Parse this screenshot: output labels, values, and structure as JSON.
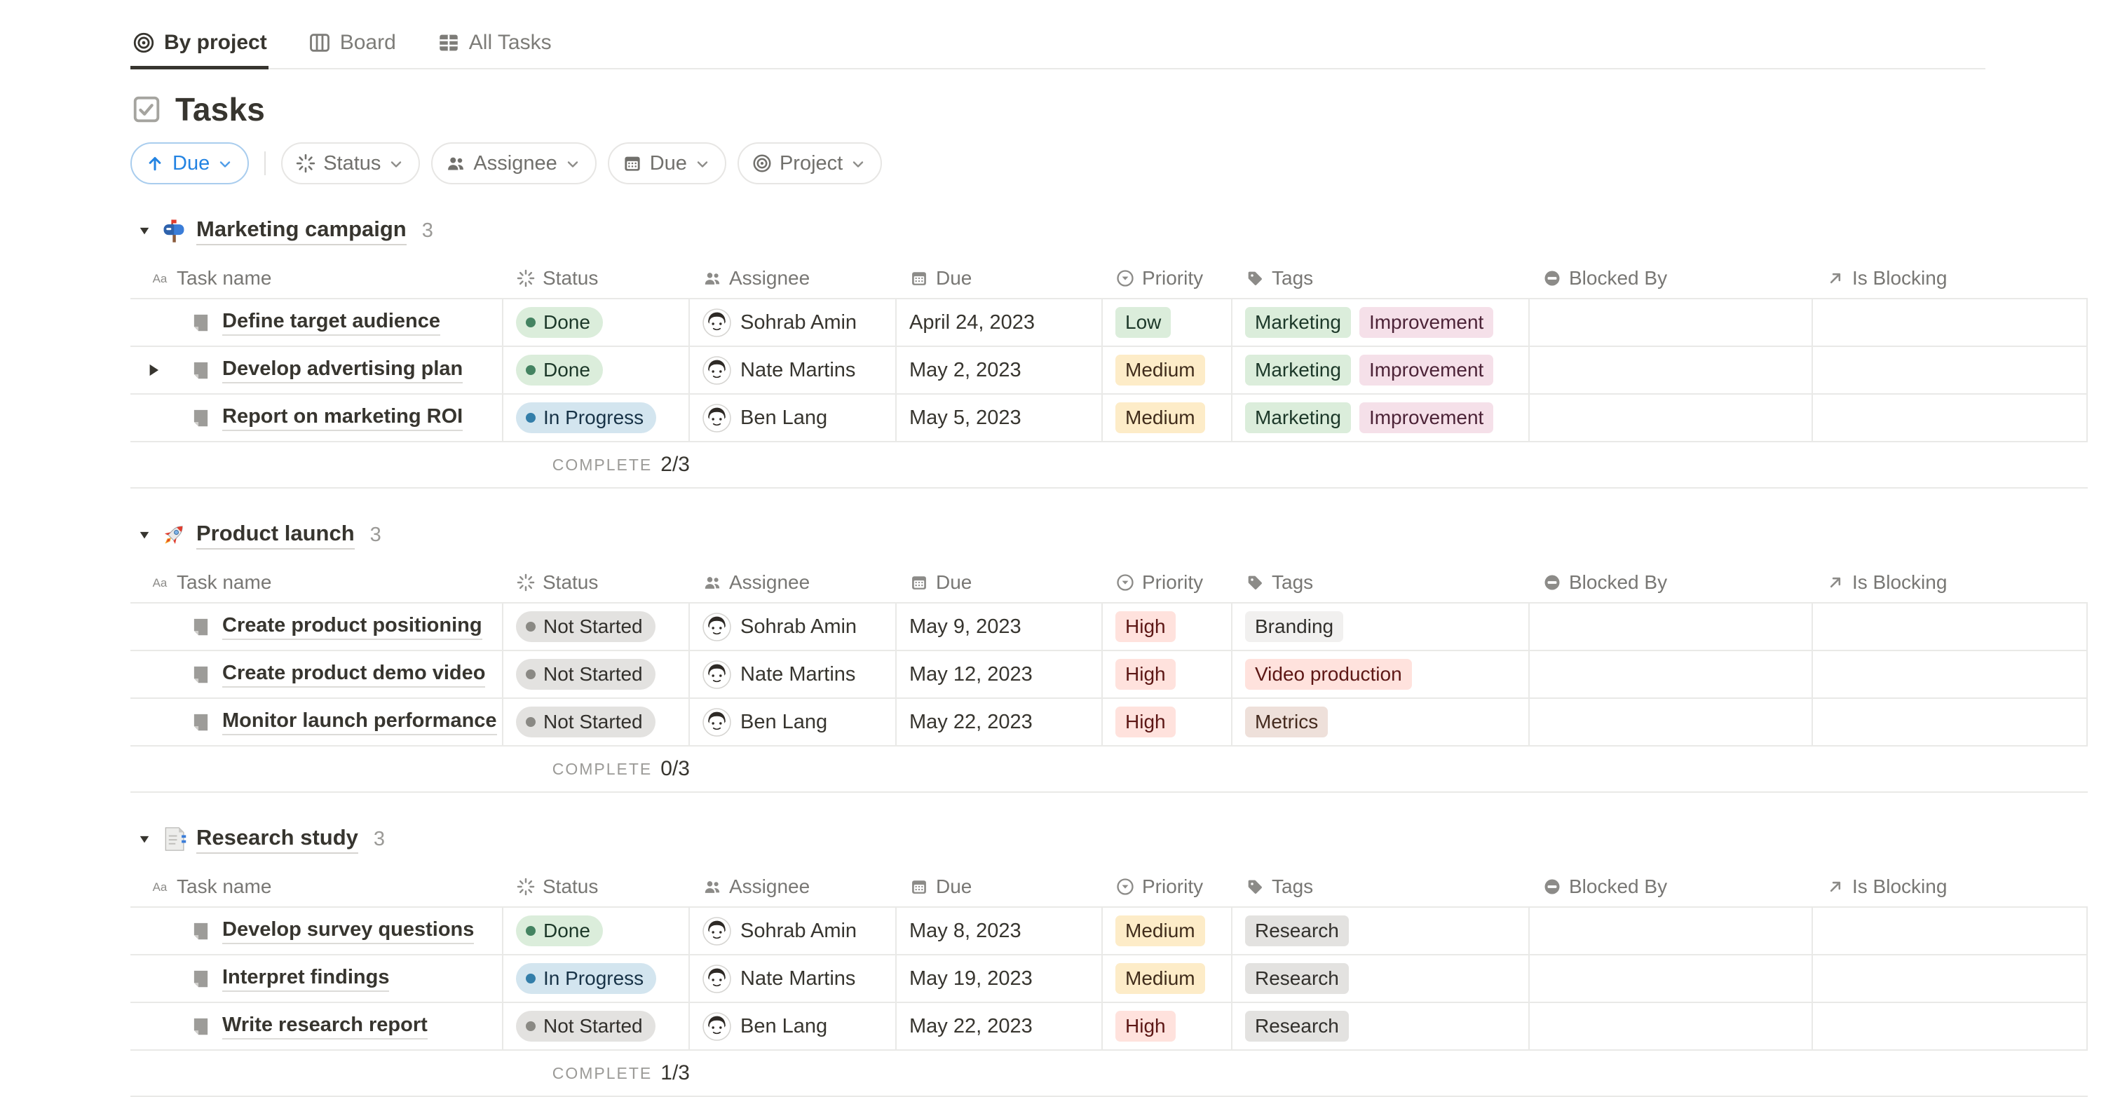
{
  "tabs": [
    {
      "label": "By project",
      "icon": "target",
      "active": true
    },
    {
      "label": "Board",
      "icon": "board",
      "active": false
    },
    {
      "label": "All Tasks",
      "icon": "table",
      "active": false
    }
  ],
  "page": {
    "title": "Tasks",
    "icon": "checkbox"
  },
  "toolbar": {
    "sort": {
      "label": "Due",
      "icon": "arrow-up"
    },
    "filters": [
      {
        "label": "Status",
        "icon": "status-spinner"
      },
      {
        "label": "Assignee",
        "icon": "people"
      },
      {
        "label": "Due",
        "icon": "calendar"
      },
      {
        "label": "Project",
        "icon": "target"
      }
    ]
  },
  "columns": [
    {
      "key": "task",
      "label": "Task name",
      "icon": "text"
    },
    {
      "key": "status",
      "label": "Status",
      "icon": "status-spinner"
    },
    {
      "key": "assignee",
      "label": "Assignee",
      "icon": "people"
    },
    {
      "key": "due",
      "label": "Due",
      "icon": "calendar"
    },
    {
      "key": "priority",
      "label": "Priority",
      "icon": "priority-select"
    },
    {
      "key": "tags",
      "label": "Tags",
      "icon": "tag"
    },
    {
      "key": "blocked_by",
      "label": "Blocked By",
      "icon": "no-entry"
    },
    {
      "key": "is_blocking",
      "label": "Is Blocking",
      "icon": "arrow-up-right"
    }
  ],
  "groups": [
    {
      "name": "Marketing campaign",
      "icon": "mailbox",
      "count": "3",
      "complete_label": "COMPLETE",
      "complete_value": "2/3",
      "rows": [
        {
          "task": "Define target audience",
          "expandable": false,
          "status": {
            "label": "Done",
            "color": "green"
          },
          "assignee": "Sohrab Amin",
          "due": "April 24, 2023",
          "priority": {
            "label": "Low",
            "color": "green"
          },
          "tags": [
            {
              "label": "Marketing",
              "color": "green"
            },
            {
              "label": "Improvement",
              "color": "pink"
            }
          ],
          "blocked_by": "",
          "is_blocking": ""
        },
        {
          "task": "Develop advertising plan",
          "expandable": true,
          "status": {
            "label": "Done",
            "color": "green"
          },
          "assignee": "Nate Martins",
          "due": "May 2, 2023",
          "priority": {
            "label": "Medium",
            "color": "yellow"
          },
          "tags": [
            {
              "label": "Marketing",
              "color": "green"
            },
            {
              "label": "Improvement",
              "color": "pink"
            }
          ],
          "blocked_by": "",
          "is_blocking": ""
        },
        {
          "task": "Report on marketing ROI",
          "expandable": false,
          "status": {
            "label": "In Progress",
            "color": "blue"
          },
          "assignee": "Ben Lang",
          "due": "May 5, 2023",
          "priority": {
            "label": "Medium",
            "color": "yellow"
          },
          "tags": [
            {
              "label": "Marketing",
              "color": "green"
            },
            {
              "label": "Improvement",
              "color": "pink"
            }
          ],
          "blocked_by": "",
          "is_blocking": ""
        }
      ]
    },
    {
      "name": "Product launch",
      "icon": "rocket",
      "count": "3",
      "complete_label": "COMPLETE",
      "complete_value": "0/3",
      "rows": [
        {
          "task": "Create product positioning",
          "expandable": false,
          "status": {
            "label": "Not Started",
            "color": "gray"
          },
          "assignee": "Sohrab Amin",
          "due": "May 9, 2023",
          "priority": {
            "label": "High",
            "color": "red"
          },
          "tags": [
            {
              "label": "Branding",
              "color": "lightgray"
            }
          ],
          "blocked_by": "",
          "is_blocking": ""
        },
        {
          "task": "Create product demo video",
          "expandable": false,
          "status": {
            "label": "Not Started",
            "color": "gray"
          },
          "assignee": "Nate Martins",
          "due": "May 12, 2023",
          "priority": {
            "label": "High",
            "color": "red"
          },
          "tags": [
            {
              "label": "Video production",
              "color": "red"
            }
          ],
          "blocked_by": "",
          "is_blocking": ""
        },
        {
          "task": "Monitor launch performance",
          "expandable": false,
          "status": {
            "label": "Not Started",
            "color": "gray"
          },
          "assignee": "Ben Lang",
          "due": "May 22, 2023",
          "priority": {
            "label": "High",
            "color": "red"
          },
          "tags": [
            {
              "label": "Metrics",
              "color": "brown"
            }
          ],
          "blocked_by": "",
          "is_blocking": ""
        }
      ]
    },
    {
      "name": "Research study",
      "icon": "bookmark-tabs",
      "count": "3",
      "complete_label": "COMPLETE",
      "complete_value": "1/3",
      "rows": [
        {
          "task": "Develop survey questions",
          "expandable": false,
          "status": {
            "label": "Done",
            "color": "green"
          },
          "assignee": "Sohrab Amin",
          "due": "May 8, 2023",
          "priority": {
            "label": "Medium",
            "color": "yellow"
          },
          "tags": [
            {
              "label": "Research",
              "color": "gray"
            }
          ],
          "blocked_by": "",
          "is_blocking": ""
        },
        {
          "task": "Interpret findings",
          "expandable": false,
          "status": {
            "label": "In Progress",
            "color": "blue"
          },
          "assignee": "Nate Martins",
          "due": "May 19, 2023",
          "priority": {
            "label": "Medium",
            "color": "yellow"
          },
          "tags": [
            {
              "label": "Research",
              "color": "gray"
            }
          ],
          "blocked_by": "",
          "is_blocking": ""
        },
        {
          "task": "Write research report",
          "expandable": false,
          "status": {
            "label": "Not Started",
            "color": "gray"
          },
          "assignee": "Ben Lang",
          "due": "May 22, 2023",
          "priority": {
            "label": "High",
            "color": "red"
          },
          "tags": [
            {
              "label": "Research",
              "color": "gray"
            }
          ],
          "blocked_by": "",
          "is_blocking": ""
        }
      ]
    }
  ],
  "colors": {
    "accent_blue": "#2383E2",
    "text": "#37352F",
    "muted_text": "#787774",
    "gridline": "#E9E9E7",
    "palette": {
      "green": {
        "bg": "#DBEDDB",
        "text": "#1C3829",
        "dot": "#448361"
      },
      "blue": {
        "bg": "#D3E5EF",
        "text": "#183347",
        "dot": "#337EA9"
      },
      "gray": {
        "bg": "#E3E2E0",
        "text": "#32302C",
        "dot": "#8A8984"
      },
      "lightgray": {
        "bg": "#F1F0EF",
        "text": "#32302C",
        "dot": "#8A8984"
      },
      "yellow": {
        "bg": "#FDECC8",
        "text": "#402C1B",
        "dot": "#CB912F"
      },
      "red": {
        "bg": "#FFE2DD",
        "text": "#5D1715",
        "dot": "#C4554D"
      },
      "pink": {
        "bg": "#F5E0E9",
        "text": "#4C2337",
        "dot": "#C14C8A"
      },
      "brown": {
        "bg": "#EEE0DA",
        "text": "#442A1E",
        "dot": "#9F6B53"
      }
    }
  }
}
